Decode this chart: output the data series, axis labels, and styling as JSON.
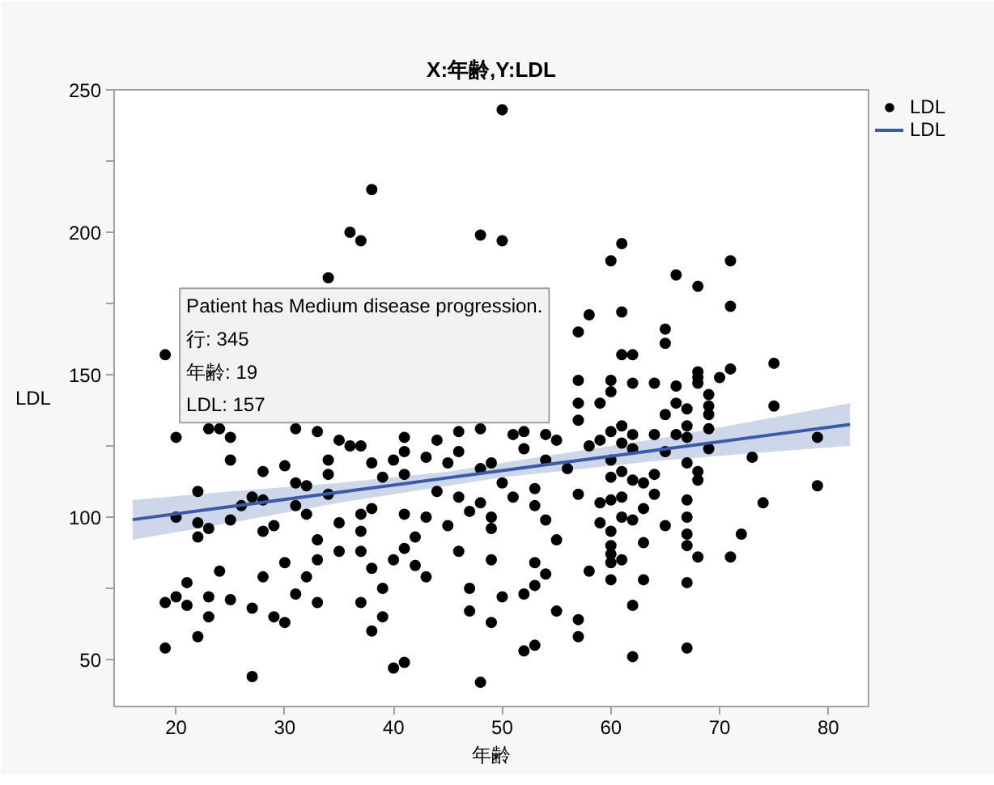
{
  "chart_data": {
    "type": "scatter",
    "title": "X:年齢,Y:LDL",
    "xlabel": "年齢",
    "ylabel": "LDL",
    "xlim": [
      14.3,
      83.7
    ],
    "ylim": [
      33.5,
      250
    ],
    "xticks": [
      20,
      30,
      40,
      50,
      60,
      70,
      80
    ],
    "yticks": [
      50,
      {
        "value": 75,
        "label": null
      },
      100,
      {
        "value": 125,
        "label": null
      },
      150,
      {
        "value": 175,
        "label": null
      },
      200,
      {
        "value": 225,
        "label": null
      },
      250
    ],
    "legend": "top right",
    "series": [
      {
        "name": "LDL",
        "color": "#000000",
        "marker": "circle",
        "x": [
          19,
          34,
          36,
          37,
          38,
          48,
          50,
          50,
          57,
          58,
          60,
          61,
          61,
          61,
          62,
          65,
          65,
          66,
          68,
          71,
          71,
          75,
          20,
          23,
          24,
          25,
          25,
          28,
          30,
          31,
          33,
          34,
          35,
          36,
          31,
          32,
          34,
          34,
          22,
          20,
          22,
          22,
          23,
          25,
          26,
          27,
          28,
          28,
          29,
          31,
          32,
          33,
          35,
          35,
          30,
          31,
          32,
          33,
          33,
          28,
          24,
          21,
          19,
          20,
          21,
          23,
          23,
          25,
          27,
          29,
          30,
          22,
          19,
          27,
          37,
          38,
          40,
          41,
          41,
          44,
          46,
          46,
          43,
          45,
          48,
          49,
          51,
          52,
          52,
          54,
          54,
          55,
          56,
          58,
          59,
          60,
          57,
          57,
          57,
          59,
          39,
          41,
          44,
          46,
          48,
          48,
          49,
          49,
          47,
          50,
          51,
          53,
          53,
          54,
          55,
          57,
          59,
          59,
          60,
          37,
          37,
          38,
          41,
          43,
          45,
          42,
          41,
          42,
          43,
          37,
          38,
          40,
          39,
          37,
          39,
          38,
          46,
          49,
          47,
          47,
          50,
          52,
          49,
          53,
          53,
          54,
          55,
          58,
          57,
          57,
          52,
          53,
          40,
          41,
          48,
          60,
          60,
          60,
          62,
          64,
          66,
          68,
          68,
          68,
          70,
          71,
          75,
          66,
          65,
          67,
          67,
          67,
          69,
          69,
          69,
          69,
          69,
          61,
          62,
          62,
          60,
          61,
          61,
          64,
          65,
          66,
          67,
          68,
          68,
          73,
          79,
          79,
          74,
          60,
          60,
          61,
          61,
          62,
          62,
          63,
          63,
          64,
          64,
          65,
          67,
          67,
          67,
          67,
          60,
          60,
          60,
          61,
          63,
          68,
          71,
          72,
          63,
          67,
          62,
          62,
          67
        ],
        "values": [
          157,
          184,
          200,
          197,
          215,
          199,
          197,
          243,
          165,
          171,
          190,
          196,
          172,
          157,
          157,
          166,
          161,
          185,
          181,
          190,
          174,
          154,
          128,
          131,
          131,
          128,
          120,
          116,
          118,
          131,
          130,
          120,
          127,
          125,
          112,
          111,
          115,
          108,
          109,
          100,
          98,
          93,
          96,
          99,
          104,
          107,
          106,
          95,
          97,
          104,
          101,
          92,
          98,
          88,
          84,
          73,
          79,
          85,
          70,
          79,
          81,
          77,
          70,
          72,
          69,
          72,
          65,
          71,
          68,
          65,
          63,
          58,
          54,
          44,
          125,
          119,
          120,
          128,
          123,
          127,
          130,
          123,
          121,
          119,
          131,
          119,
          129,
          130,
          124,
          129,
          120,
          127,
          117,
          125,
          127,
          130,
          148,
          140,
          134,
          140,
          114,
          115,
          109,
          107,
          117,
          105,
          100,
          96,
          102,
          112,
          107,
          110,
          104,
          99,
          92,
          108,
          105,
          98,
          90,
          101,
          95,
          103,
          101,
          100,
          97,
          93,
          89,
          83,
          79,
          88,
          82,
          85,
          75,
          70,
          65,
          60,
          88,
          85,
          75,
          67,
          72,
          73,
          63,
          84,
          76,
          80,
          67,
          81,
          64,
          58,
          53,
          55,
          47,
          49,
          42,
          78,
          148,
          144,
          147,
          147,
          146,
          151,
          149,
          147,
          149,
          152,
          139,
          140,
          136,
          138,
          132,
          128,
          143,
          139,
          136,
          131,
          124,
          132,
          129,
          124,
          120,
          126,
          116,
          129,
          123,
          129,
          119,
          116,
          113,
          121,
          128,
          111,
          105,
          114,
          106,
          107,
          100,
          113,
          99,
          112,
          103,
          115,
          108,
          97,
          106,
          100,
          94,
          90,
          95,
          87,
          84,
          85,
          91,
          86,
          86,
          94,
          78,
          77,
          69,
          51,
          54
        ]
      },
      {
        "type": "line",
        "name": "LDL",
        "color": "#3a5ba8",
        "x": [
          16,
          25,
          35,
          45,
          50,
          55,
          65,
          75,
          82
        ],
        "values": [
          99.1,
          103.7,
          108.7,
          113.8,
          116.3,
          118.9,
          123.9,
          129.0,
          132.5
        ],
        "lower": [
          92,
          98,
          105,
          111,
          114,
          116,
          120,
          123,
          125
        ],
        "upper": [
          106,
          109,
          112,
          116,
          119,
          122,
          128,
          135,
          140
        ]
      }
    ],
    "annotations": [
      {
        "text": "Patient has Medium disease progression.\n行: 345\n年齢: 19\nLDL: 157",
        "x": 19,
        "y": 157
      }
    ]
  }
}
